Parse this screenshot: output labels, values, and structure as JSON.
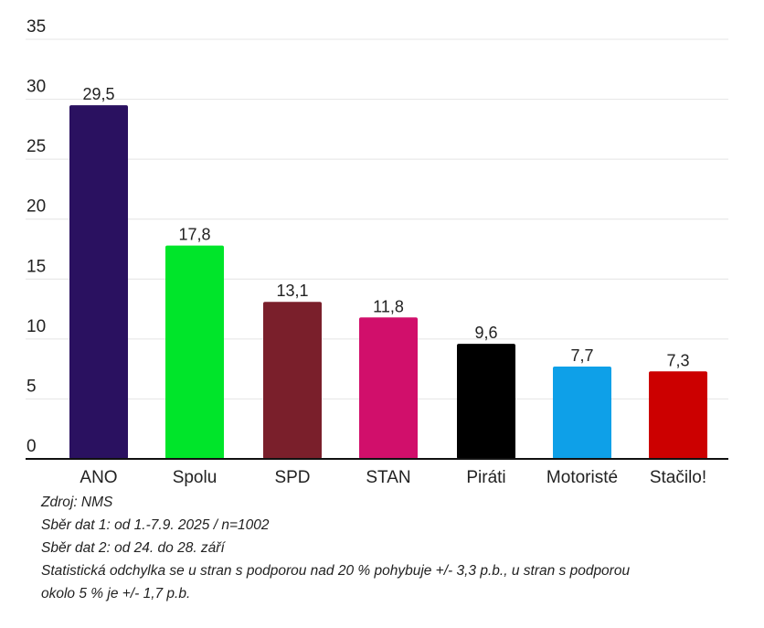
{
  "chart_data": {
    "type": "bar",
    "title": "",
    "xlabel": "",
    "ylabel": "",
    "categories": [
      "ANO",
      "Spolu",
      "SPD",
      "STAN",
      "Piráti",
      "Motoristé",
      "Stačilo!"
    ],
    "values": [
      29.5,
      17.8,
      13.1,
      11.8,
      9.6,
      7.7,
      7.3
    ],
    "value_labels": [
      "29,5",
      "17,8",
      "13,1",
      "11,8",
      "9,6",
      "7,7",
      "7,3"
    ],
    "colors": [
      "#2a1160",
      "#00e52a",
      "#7a1f2b",
      "#d10f6b",
      "#000000",
      "#0ea0e8",
      "#cc0000"
    ],
    "ylim": [
      0,
      35
    ],
    "yticks": [
      0,
      5,
      10,
      15,
      20,
      25,
      30,
      35
    ],
    "grid": true,
    "legend": "none"
  },
  "notes": {
    "source": "Zdroj: NMS",
    "collection1": "Sběr dat 1: od 1.-7.9. 2025 / n=1002",
    "collection2": "Sběr dat 2: od 24. do 28. září",
    "error_line1": "Statistická odchylka se u stran s podporou nad 20 % pohybuje +/- 3,3 p.b., u stran s podporou",
    "error_line2": "okolo 5 % je +/- 1,7 p.b."
  }
}
